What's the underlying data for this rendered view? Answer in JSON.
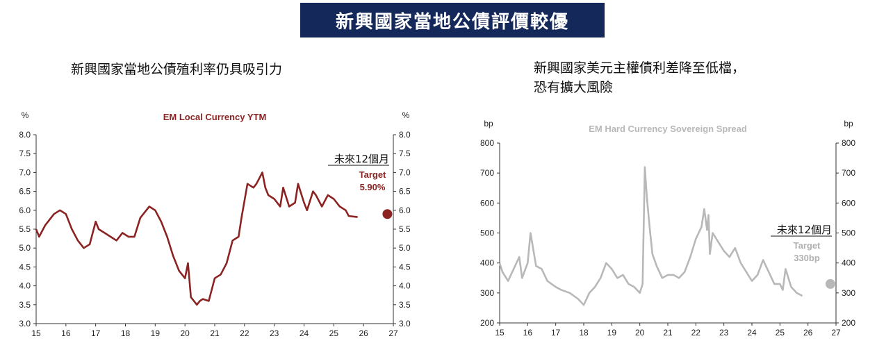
{
  "header": {
    "title": "新興國家當地公債評價較優"
  },
  "left_panel": {
    "subtitle": "新興國家當地公債殖利率仍具吸引力"
  },
  "right_panel": {
    "subtitle_line1": "新興國家美元主權債利差降至低檔，",
    "subtitle_line2": "恐有擴大風險"
  },
  "chart_data": [
    {
      "type": "line",
      "title": "EM Local Currency YTM",
      "unit_left": "%",
      "unit_right": "%",
      "color": "#8b2323",
      "ylim": [
        3.0,
        8.0
      ],
      "yticks": [
        "3.0",
        "3.5",
        "4.0",
        "4.5",
        "5.0",
        "5.5",
        "6.0",
        "6.5",
        "7.0",
        "7.5",
        "8.0"
      ],
      "xlim": [
        15,
        27
      ],
      "xticks": [
        "15",
        "16",
        "17",
        "18",
        "19",
        "20",
        "21",
        "22",
        "23",
        "24",
        "25",
        "26",
        "27"
      ],
      "series": [
        {
          "x": [
            15.0,
            15.1,
            15.3,
            15.5,
            15.6,
            15.8,
            15.9,
            16.0,
            16.2,
            16.4,
            16.6,
            16.8,
            17.0,
            17.1,
            17.3,
            17.5,
            17.7,
            17.9,
            18.1,
            18.3,
            18.5,
            18.7,
            18.8,
            19.0,
            19.2,
            19.4,
            19.6,
            19.8,
            20.0,
            20.1,
            20.2,
            20.4,
            20.5,
            20.6,
            20.8,
            21.0,
            21.2,
            21.4,
            21.6,
            21.8,
            21.9,
            22.1,
            22.3,
            22.4,
            22.6,
            22.7,
            22.8,
            23.0,
            23.2,
            23.3,
            23.5,
            23.7,
            23.8,
            24.0,
            24.1,
            24.3,
            24.4,
            24.6,
            24.8,
            25.0,
            25.2,
            25.4,
            25.5,
            25.8
          ],
          "y": [
            5.5,
            5.3,
            5.6,
            5.8,
            5.9,
            6.0,
            5.95,
            5.9,
            5.5,
            5.2,
            5.0,
            5.1,
            5.7,
            5.5,
            5.4,
            5.3,
            5.2,
            5.4,
            5.3,
            5.3,
            5.8,
            6.0,
            6.1,
            6.0,
            5.7,
            5.3,
            4.8,
            4.4,
            4.2,
            4.6,
            3.7,
            3.5,
            3.6,
            3.65,
            3.6,
            4.2,
            4.3,
            4.6,
            5.2,
            5.3,
            5.8,
            6.7,
            6.6,
            6.7,
            7.0,
            6.6,
            6.4,
            6.3,
            6.1,
            6.6,
            6.1,
            6.2,
            6.7,
            6.2,
            6.0,
            6.5,
            6.4,
            6.1,
            6.4,
            6.3,
            6.1,
            6.0,
            5.85,
            5.82
          ]
        }
      ],
      "annotation": {
        "label": "未來12個月",
        "target_label": "Target",
        "target_value": "5.90%",
        "x": 26.8,
        "y": 5.9
      }
    },
    {
      "type": "line",
      "title": "EM Hard Currency Sovereign Spread",
      "unit_left": "bp",
      "unit_right": "bp",
      "color": "#b8b8b8",
      "ylim": [
        200,
        800
      ],
      "yticks": [
        "200",
        "300",
        "400",
        "500",
        "600",
        "700",
        "800"
      ],
      "xlim": [
        15,
        27
      ],
      "xticks": [
        "15",
        "16",
        "17",
        "18",
        "19",
        "20",
        "21",
        "22",
        "23",
        "24",
        "25",
        "26",
        "27"
      ],
      "series": [
        {
          "x": [
            15.0,
            15.1,
            15.3,
            15.5,
            15.7,
            15.8,
            16.0,
            16.1,
            16.3,
            16.5,
            16.7,
            17.0,
            17.2,
            17.5,
            17.8,
            18.0,
            18.2,
            18.4,
            18.6,
            18.8,
            19.0,
            19.2,
            19.4,
            19.6,
            19.8,
            20.0,
            20.1,
            20.18,
            20.25,
            20.35,
            20.45,
            20.6,
            20.8,
            21.0,
            21.2,
            21.4,
            21.6,
            21.8,
            22.0,
            22.2,
            22.3,
            22.4,
            22.45,
            22.5,
            22.6,
            22.8,
            23.0,
            23.2,
            23.4,
            23.6,
            23.8,
            24.0,
            24.2,
            24.4,
            24.6,
            24.8,
            25.0,
            25.1,
            25.2,
            25.4,
            25.6,
            25.8
          ],
          "y": [
            400,
            370,
            340,
            380,
            420,
            350,
            400,
            500,
            390,
            380,
            340,
            320,
            310,
            300,
            280,
            260,
            300,
            320,
            350,
            400,
            380,
            350,
            360,
            330,
            320,
            300,
            330,
            720,
            620,
            520,
            430,
            390,
            350,
            360,
            360,
            350,
            370,
            420,
            480,
            520,
            580,
            510,
            560,
            430,
            500,
            470,
            440,
            420,
            450,
            400,
            370,
            340,
            360,
            410,
            370,
            330,
            330,
            310,
            380,
            320,
            300,
            290
          ]
        }
      ],
      "annotation": {
        "label": "未來12個月",
        "target_label": "Target",
        "target_value": "330bp",
        "x": 26.8,
        "y": 330
      }
    }
  ]
}
